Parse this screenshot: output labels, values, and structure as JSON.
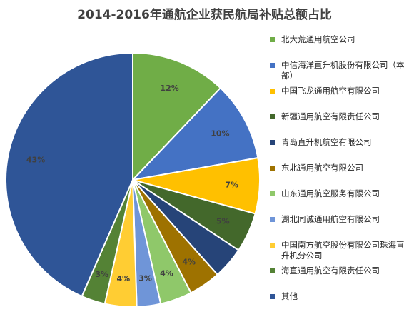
{
  "chart_data": {
    "type": "pie",
    "title": "2014-2016年通航企业获民航局补贴总额占比",
    "legend_position": "right",
    "slices": [
      {
        "name": "北大荒通用航空公司",
        "value": 12,
        "label": "12%",
        "color": "#70ad47"
      },
      {
        "name": "中信海洋直升机股份有限公司（本部）",
        "value": 10,
        "label": "10%",
        "color": "#4472c4"
      },
      {
        "name": "中国飞龙通用航空有限公司",
        "value": 7,
        "label": "7%",
        "color": "#ffc000"
      },
      {
        "name": "新疆通用航空有限责任公司",
        "value": 5,
        "label": "5%",
        "color": "#43682b"
      },
      {
        "name": "青岛直升机航空有限公司",
        "value": 4,
        "label": "",
        "color": "#264478"
      },
      {
        "name": "东北通用航空有限公司",
        "value": 4,
        "label": "4%",
        "color": "#9e7200"
      },
      {
        "name": "山东通用航空服务有限公司",
        "value": 4,
        "label": "4%",
        "color": "#8fc86a"
      },
      {
        "name": "湖北同诚通用航空有限公司",
        "value": 3,
        "label": "3%",
        "color": "#6f95d8"
      },
      {
        "name": "中国南方航空股份有限公司珠海直升机分公司",
        "value": 4,
        "label": "4%",
        "color": "#ffcd33"
      },
      {
        "name": "海直通用航空有限责任公司",
        "value": 3,
        "label": "3%",
        "color": "#548235"
      },
      {
        "name": "其他",
        "value": 43,
        "label": "43%",
        "color": "#2f5597"
      }
    ]
  }
}
